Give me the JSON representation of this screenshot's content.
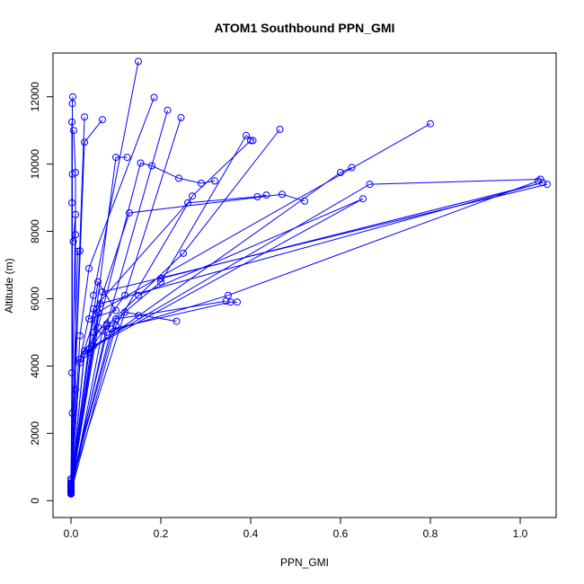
{
  "chart_data": {
    "type": "line",
    "title": "ATOM1 Southbound PPN_GMI",
    "xlabel": "PPN_GMI",
    "ylabel": "Altitude (m)",
    "xlim": [
      -0.04,
      1.08
    ],
    "ylim": [
      -500,
      13300
    ],
    "xticks": [
      0.0,
      0.2,
      0.4,
      0.6,
      0.8,
      1.0
    ],
    "xtick_labels": [
      "0.0",
      "0.2",
      "0.4",
      "0.6",
      "0.8",
      "1.0"
    ],
    "yticks": [
      0,
      2000,
      4000,
      6000,
      8000,
      10000,
      12000
    ],
    "ytick_labels": [
      "0",
      "2000",
      "4000",
      "6000",
      "8000",
      "10000",
      "12000"
    ],
    "grid": false,
    "legend": "none",
    "colors": {
      "series": "#0000ff",
      "axis": "#000000",
      "background": "#ffffff"
    },
    "series": [
      {
        "points": [
          [
            0.0,
            200
          ],
          [
            0.003,
            2600
          ],
          [
            0.003,
            9700
          ],
          [
            0.003,
            11800
          ],
          [
            0.004,
            12000
          ]
        ]
      },
      {
        "points": [
          [
            0.0,
            250
          ],
          [
            0.002,
            3800
          ],
          [
            0.002,
            8850
          ],
          [
            0.002,
            11250
          ]
        ]
      },
      {
        "points": [
          [
            0.0,
            220
          ],
          [
            0.01,
            3300
          ],
          [
            0.01,
            7900
          ],
          [
            0.01,
            9750
          ],
          [
            0.006,
            11000
          ]
        ]
      },
      {
        "points": [
          [
            0.0,
            300
          ],
          [
            0.02,
            4200
          ],
          [
            0.05,
            6100
          ],
          [
            0.15,
            13050
          ]
        ]
      },
      {
        "points": [
          [
            0.0,
            250
          ],
          [
            0.02,
            4900
          ],
          [
            0.04,
            6900
          ],
          [
            0.185,
            11980
          ]
        ]
      },
      {
        "points": [
          [
            0.0,
            350
          ],
          [
            0.04,
            4400
          ],
          [
            0.08,
            5250
          ],
          [
            0.215,
            11600
          ]
        ]
      },
      {
        "points": [
          [
            0.0,
            240
          ],
          [
            0.03,
            4450
          ],
          [
            0.12,
            6100
          ],
          [
            0.245,
            11380
          ]
        ]
      },
      {
        "points": [
          [
            0.0,
            260
          ],
          [
            0.03,
            10650
          ],
          [
            0.07,
            11320
          ]
        ]
      },
      {
        "points": [
          [
            0.0,
            280
          ],
          [
            0.03,
            11400
          ]
        ]
      },
      {
        "points": [
          [
            0.0,
            300
          ],
          [
            0.05,
            5000
          ],
          [
            0.1,
            10200
          ],
          [
            0.125,
            10200
          ]
        ]
      },
      {
        "points": [
          [
            0.0,
            320
          ],
          [
            0.06,
            5150
          ],
          [
            0.155,
            10030
          ],
          [
            0.18,
            9950
          ],
          [
            0.24,
            9580
          ],
          [
            0.29,
            9430
          ],
          [
            0.32,
            9500
          ]
        ]
      },
      {
        "points": [
          [
            0.0,
            200
          ],
          [
            0.07,
            5050
          ],
          [
            0.2,
            6500
          ],
          [
            0.39,
            10850
          ],
          [
            0.405,
            10700
          ]
        ]
      },
      {
        "points": [
          [
            0.0,
            230
          ],
          [
            0.08,
            5200
          ],
          [
            0.25,
            7350
          ],
          [
            0.465,
            11030
          ]
        ]
      },
      {
        "points": [
          [
            0.0,
            260
          ],
          [
            0.1,
            5200
          ],
          [
            0.27,
            9050
          ],
          [
            0.4,
            10700
          ]
        ]
      },
      {
        "points": [
          [
            0.0,
            290
          ],
          [
            0.05,
            5700
          ],
          [
            0.26,
            8850
          ],
          [
            0.415,
            9030
          ],
          [
            0.435,
            9080
          ]
        ]
      },
      {
        "points": [
          [
            0.0,
            310
          ],
          [
            0.02,
            4100
          ],
          [
            0.13,
            8550
          ],
          [
            0.47,
            9100
          ],
          [
            0.52,
            8900
          ]
        ]
      },
      {
        "points": [
          [
            0.0,
            330
          ],
          [
            0.03,
            4350
          ],
          [
            0.6,
            9750
          ],
          [
            0.625,
            9900
          ]
        ]
      },
      {
        "points": [
          [
            0.0,
            350
          ],
          [
            0.04,
            4500
          ],
          [
            0.65,
            8970
          ],
          [
            0.15,
            6100
          ]
        ]
      },
      {
        "points": [
          [
            0.0,
            370
          ],
          [
            0.05,
            4600
          ],
          [
            0.665,
            9400
          ],
          [
            1.045,
            9550
          ]
        ]
      },
      {
        "points": [
          [
            0.0,
            390
          ],
          [
            0.06,
            5600
          ],
          [
            0.8,
            11200
          ]
        ]
      },
      {
        "points": [
          [
            0.0,
            410
          ],
          [
            0.065,
            5850
          ],
          [
            1.05,
            9450
          ],
          [
            0.2,
            6600
          ]
        ]
      },
      {
        "points": [
          [
            0.0,
            430
          ],
          [
            0.07,
            6200
          ],
          [
            1.06,
            9400
          ]
        ]
      },
      {
        "points": [
          [
            0.0,
            450
          ],
          [
            0.08,
            5000
          ],
          [
            0.35,
            6100
          ],
          [
            1.04,
            9500
          ]
        ]
      },
      {
        "points": [
          [
            0.0,
            470
          ],
          [
            0.09,
            5100
          ],
          [
            0.355,
            5900
          ],
          [
            0.37,
            5900
          ]
        ]
      },
      {
        "points": [
          [
            0.0,
            490
          ],
          [
            0.1,
            5400
          ],
          [
            0.15,
            5500
          ],
          [
            0.345,
            5930
          ]
        ]
      },
      {
        "points": [
          [
            0.0,
            510
          ],
          [
            0.12,
            5600
          ],
          [
            0.235,
            5330
          ]
        ]
      },
      {
        "points": [
          [
            0.0,
            530
          ],
          [
            0.06,
            6500
          ],
          [
            0.1,
            5650
          ],
          [
            0.04,
            5400
          ]
        ]
      },
      {
        "points": [
          [
            0.0,
            600
          ],
          [
            0.015,
            7400
          ],
          [
            0.02,
            7420
          ]
        ]
      },
      {
        "points": [
          [
            0.0,
            650
          ],
          [
            0.01,
            8500
          ],
          [
            0.005,
            7700
          ]
        ]
      }
    ]
  }
}
